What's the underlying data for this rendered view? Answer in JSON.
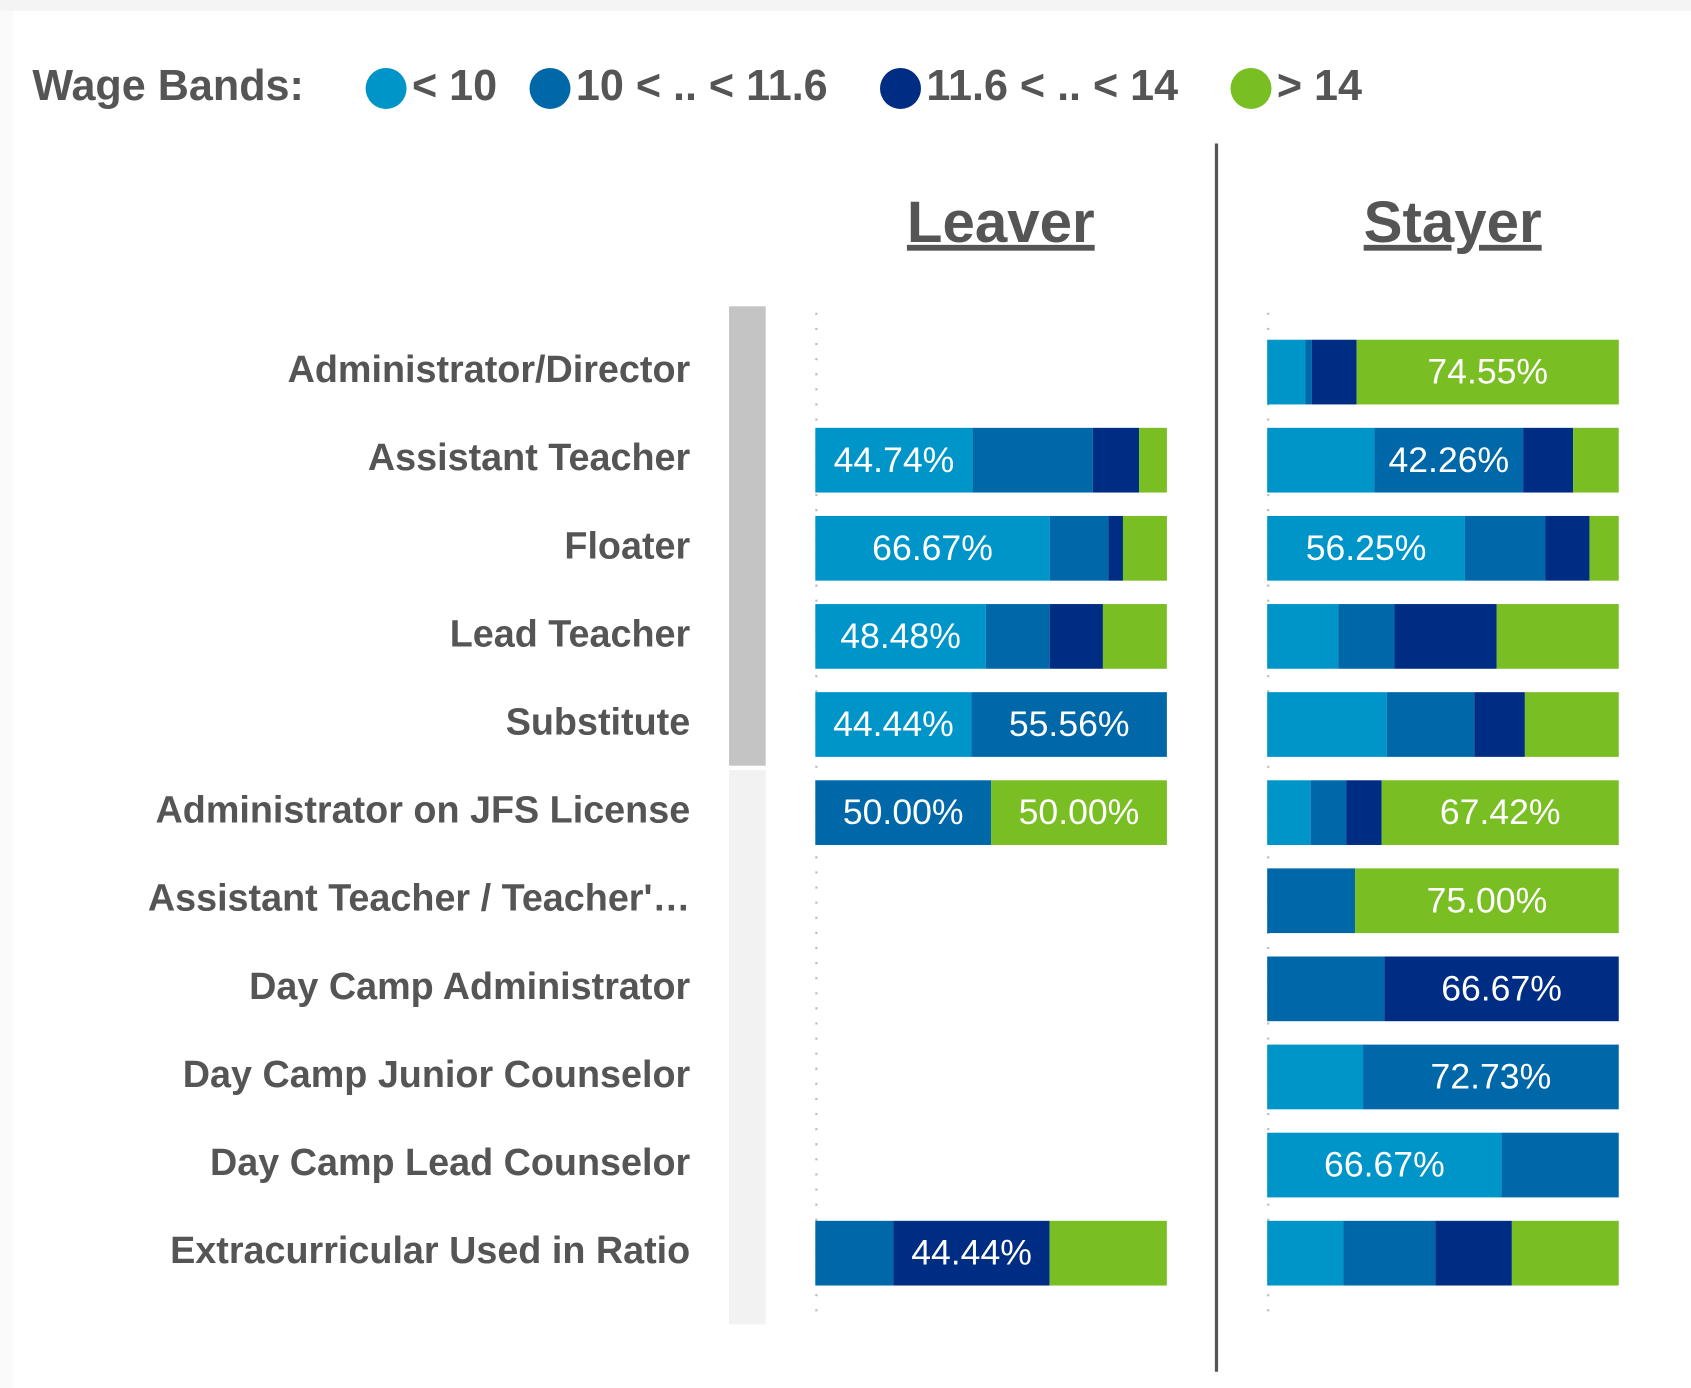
{
  "chart_data": {
    "type": "bar",
    "orientation": "horizontal",
    "stacked": true,
    "legend_title": "Wage Bands:",
    "xlim": [
      0,
      100
    ],
    "categories": [
      "Administrator/Director",
      "Assistant Teacher",
      "Floater",
      "Lead Teacher",
      "Substitute",
      "Administrator on JFS License",
      "Assistant Teacher / Teacher'…",
      "Day Camp Administrator",
      "Day Camp Junior Counselor",
      "Day Camp Lead Counselor",
      "Extracurricular Used in Ratio"
    ],
    "series": [
      {
        "name": "< 10",
        "color": "#0095c9"
      },
      {
        "name": "10 < .. < 11.6",
        "color": "#0068a8"
      },
      {
        "name": "11.6 < .. < 14",
        "color": "#002d84"
      },
      {
        "name": "> 14",
        "color": "#79be22"
      }
    ],
    "panels": [
      {
        "title": "Leaver",
        "series": [
          {
            "values": [
              null,
              44.74,
              66.67,
              48.48,
              44.44,
              0,
              null,
              null,
              null,
              null,
              0
            ],
            "value_labels": [
              null,
              "44.74%",
              "66.67%",
              "48.48%",
              "44.44%",
              null,
              null,
              null,
              null,
              null,
              null
            ]
          },
          {
            "values": [
              null,
              34.21,
              16.67,
              18.18,
              55.56,
              50,
              null,
              null,
              null,
              null,
              22.22
            ],
            "value_labels": [
              null,
              null,
              null,
              null,
              "55.56%",
              "50.00%",
              null,
              null,
              null,
              null,
              null
            ]
          },
          {
            "values": [
              null,
              13.16,
              4.17,
              15.15,
              0,
              0,
              null,
              null,
              null,
              null,
              44.44
            ],
            "value_labels": [
              null,
              null,
              null,
              null,
              null,
              null,
              null,
              null,
              null,
              null,
              "44.44%"
            ]
          },
          {
            "values": [
              null,
              7.89,
              12.5,
              18.18,
              0,
              50,
              null,
              null,
              null,
              null,
              33.33
            ],
            "value_labels": [
              null,
              null,
              null,
              null,
              null,
              "50.00%",
              null,
              null,
              null,
              null,
              null
            ]
          }
        ]
      },
      {
        "title": "Stayer",
        "series": [
          {
            "values": [
              10.91,
              30.54,
              56.25,
              20.2,
              34.0,
              12.36,
              0,
              0,
              27.27,
              66.67,
              21.7
            ],
            "value_labels": [
              null,
              null,
              "56.25%",
              null,
              null,
              null,
              null,
              null,
              null,
              "66.67%",
              null
            ]
          },
          {
            "values": [
              1.82,
              42.26,
              22.92,
              16.0,
              24.9,
              10.11,
              25,
              33.33,
              72.73,
              33.33,
              26.1
            ],
            "value_labels": [
              null,
              "42.26%",
              null,
              null,
              null,
              null,
              null,
              null,
              "72.73%",
              null,
              null
            ]
          },
          {
            "values": [
              12.73,
              14.23,
              12.5,
              29.1,
              14.4,
              10.11,
              0,
              66.67,
              0,
              0,
              21.8
            ],
            "value_labels": [
              null,
              null,
              null,
              null,
              null,
              null,
              null,
              "66.67%",
              null,
              null,
              null
            ]
          },
          {
            "values": [
              74.55,
              12.97,
              8.33,
              34.7,
              26.7,
              67.42,
              75,
              0,
              0,
              0,
              30.4
            ],
            "value_labels": [
              "74.55%",
              null,
              null,
              null,
              null,
              "67.42%",
              "75.00%",
              null,
              null,
              null,
              null
            ]
          }
        ]
      }
    ]
  }
}
